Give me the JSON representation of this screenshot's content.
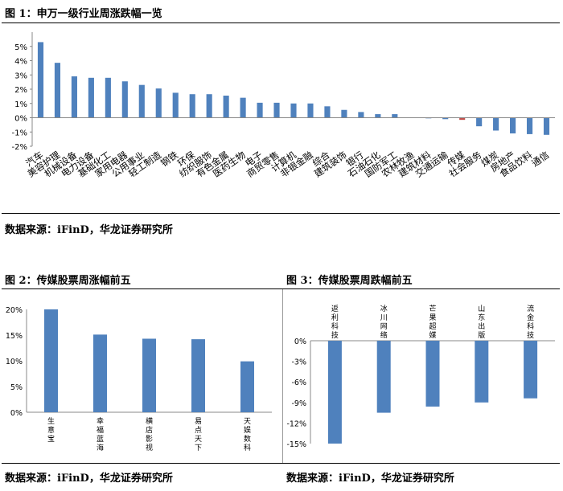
{
  "fig1": {
    "title": "图 1：申万一级行业周涨跌幅一览",
    "source": "数据来源：iFinD，华龙证券研究所"
  },
  "fig2": {
    "title": "图 2：传媒股票周涨幅前五",
    "source": "数据来源：iFinD，华龙证券研究所"
  },
  "fig3": {
    "title": "图 3：传媒股票周跌幅前五",
    "source": "数据来源：iFinD，华龙证券研究所"
  },
  "chart_data": [
    {
      "type": "bar",
      "title": "申万一级行业周涨跌幅一览",
      "categories": [
        "汽车",
        "美容护理",
        "机械设备",
        "电力设备",
        "基础化工",
        "家用电器",
        "公用事业",
        "轻工制造",
        "钢铁",
        "环保",
        "纺织服饰",
        "有色金属",
        "医药生物",
        "电子",
        "商贸零售",
        "计算机",
        "非银金融",
        "综合",
        "建筑装饰",
        "银行",
        "石油石化",
        "国防军工",
        "农林牧渔",
        "建筑材料",
        "交通运输",
        "传媒",
        "社会服务",
        "煤炭",
        "房地产",
        "食品饮料",
        "通信"
      ],
      "values": [
        5.3,
        3.85,
        2.9,
        2.8,
        2.8,
        2.55,
        2.3,
        2.05,
        1.75,
        1.65,
        1.65,
        1.55,
        1.4,
        1.05,
        1.05,
        1.0,
        1.0,
        0.8,
        0.55,
        0.4,
        0.25,
        0.25,
        0.02,
        -0.03,
        -0.1,
        -0.15,
        -0.6,
        -0.9,
        -1.1,
        -1.15,
        -1.2
      ],
      "highlight_index": 25,
      "bar_color": "#4f81bd",
      "highlight_color": "#c0504d",
      "yticks": [
        "5%",
        "4%",
        "3%",
        "2%",
        "1%",
        "0%",
        "-1%",
        "-2%"
      ],
      "ylim": [
        -2,
        6
      ]
    },
    {
      "type": "bar",
      "title": "传媒股票周涨幅前五",
      "categories": [
        "生意宝",
        "幸福蓝海",
        "横店影视",
        "易点天下",
        "天娱数科"
      ],
      "values": [
        20.0,
        15.1,
        14.3,
        14.2,
        9.9
      ],
      "bar_color": "#4f81bd",
      "yticks": [
        "20%",
        "15%",
        "10%",
        "5%",
        "0%"
      ],
      "ylim": [
        0,
        20
      ]
    },
    {
      "type": "bar",
      "title": "传媒股票周跌幅前五",
      "categories": [
        "返利科技",
        "冰川网络",
        "芒果超媒",
        "山东出版",
        "流金科技"
      ],
      "values": [
        -15.0,
        -10.5,
        -9.6,
        -9.0,
        -8.4
      ],
      "bar_color": "#4f81bd",
      "yticks": [
        "0%",
        "-3%",
        "-6%",
        "-9%",
        "-12%",
        "-15%"
      ],
      "ylim": [
        -15,
        0
      ]
    }
  ]
}
